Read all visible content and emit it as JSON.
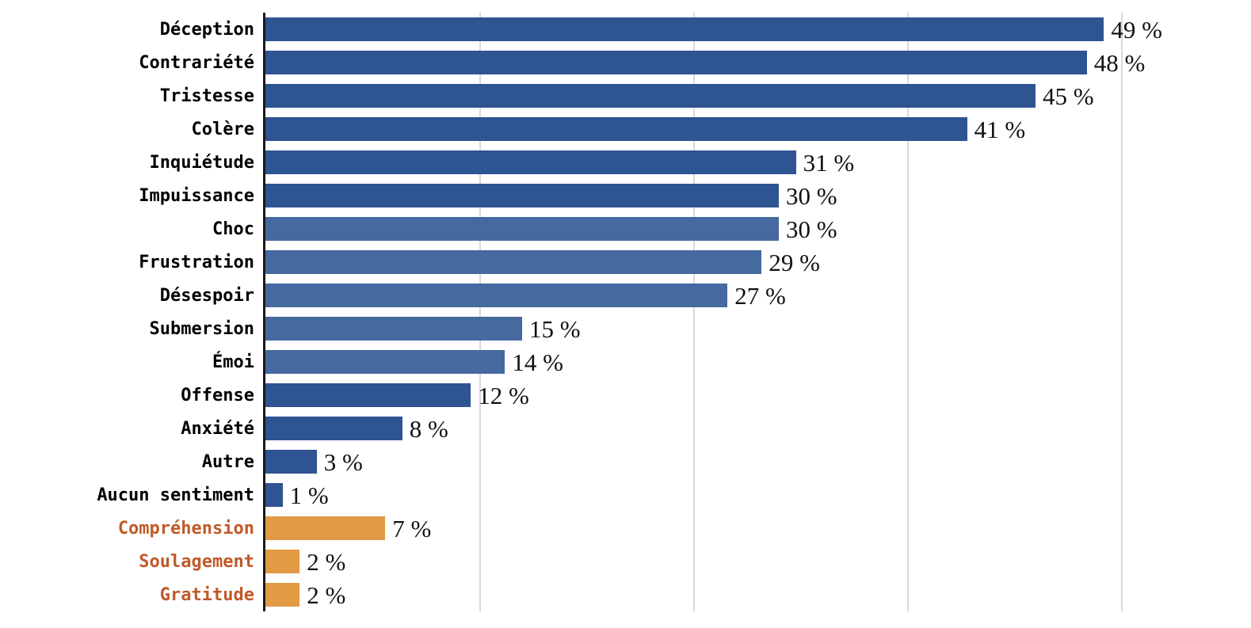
{
  "chart_data": {
    "type": "bar",
    "orientation": "horizontal",
    "title": "",
    "xlabel": "",
    "ylabel": "",
    "xlim": [
      0,
      50
    ],
    "grid_on": true,
    "gridlines_at_percent": [
      12.5,
      25,
      37.5,
      50
    ],
    "legend": "none",
    "categories": [
      "Déception",
      "Contrariété",
      "Tristesse",
      "Colère",
      "Inquiétude",
      "Impuissance",
      "Choc",
      "Frustration",
      "Désespoir",
      "Submersion",
      "Émoi",
      "Offense",
      "Anxiété",
      "Autre",
      "Aucun sentiment",
      "Compréhension",
      "Soulagement",
      "Gratitude"
    ],
    "values": [
      49,
      48,
      45,
      41,
      31,
      30,
      30,
      29,
      27,
      15,
      14,
      12,
      8,
      3,
      1,
      7,
      2,
      2
    ],
    "value_labels": [
      "49 %",
      "48 %",
      "45 %",
      "41 %",
      "31 %",
      "30 %",
      "30 %",
      "29 %",
      "27 %",
      "15 %",
      "14 %",
      "12 %",
      "8 %",
      "3 %",
      "1 %",
      "7 %",
      "2 %",
      "2 %"
    ],
    "bar_color_keys": [
      "blue_dark",
      "blue_dark",
      "blue_dark",
      "blue_dark",
      "blue_dark",
      "blue_dark",
      "blue_light",
      "blue_light",
      "blue_light",
      "blue_light",
      "blue_light",
      "blue_dark",
      "blue_dark",
      "blue_dark",
      "blue_dark",
      "orange",
      "orange",
      "orange"
    ],
    "category_color_keys": [
      "black",
      "black",
      "black",
      "black",
      "black",
      "black",
      "black",
      "black",
      "black",
      "black",
      "black",
      "black",
      "black",
      "black",
      "black",
      "orange_text",
      "orange_text",
      "orange_text"
    ],
    "palette": {
      "blue_dark": "#2e5492",
      "blue_light": "#46699f",
      "orange": "#e29a44",
      "orange_text": "#c05a28",
      "black": "#000000",
      "grid": "#d9d9d9",
      "axis": "#1a1a1a",
      "value_text": "#111111"
    }
  }
}
